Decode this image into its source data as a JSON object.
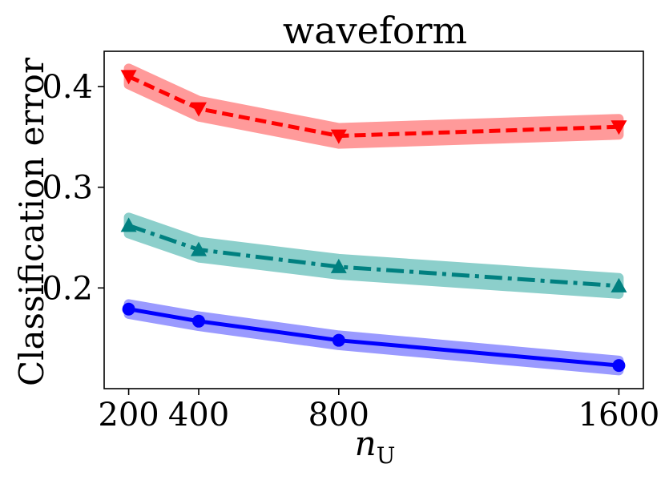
{
  "chart_data": {
    "type": "line",
    "title": "waveform",
    "xlabel": "n",
    "xlabel_subscript": "U",
    "ylabel": "Classification error",
    "x": [
      200,
      400,
      800,
      1600
    ],
    "x_tick_labels": [
      "200",
      "400",
      "800",
      "1600"
    ],
    "xlim": [
      130,
      1670
    ],
    "ylim": [
      0.1,
      0.435
    ],
    "y_ticks": [
      0.2,
      0.3,
      0.4
    ],
    "y_tick_labels": [
      "0.2",
      "0.3",
      "0.4"
    ],
    "series": [
      {
        "name": "red-dashed-down-triangle",
        "color": "#ff0000",
        "band_color": "#ff9a9a",
        "line_style": "dashed",
        "marker": "triangle-down",
        "values": [
          0.41,
          0.378,
          0.351,
          0.36
        ],
        "band": [
          0.008,
          0.008,
          0.008,
          0.008
        ]
      },
      {
        "name": "teal-dashdot-up-triangle",
        "color": "#008080",
        "band_color": "#8ccfcb",
        "line_style": "dashdot",
        "marker": "triangle-up",
        "values": [
          0.262,
          0.238,
          0.221,
          0.202
        ],
        "band": [
          0.008,
          0.008,
          0.008,
          0.008
        ]
      },
      {
        "name": "blue-solid-circle",
        "color": "#0000ff",
        "band_color": "#9a9aff",
        "line_style": "solid",
        "marker": "circle",
        "values": [
          0.179,
          0.167,
          0.148,
          0.123
        ],
        "band": [
          0.005,
          0.005,
          0.005,
          0.005
        ]
      }
    ]
  }
}
